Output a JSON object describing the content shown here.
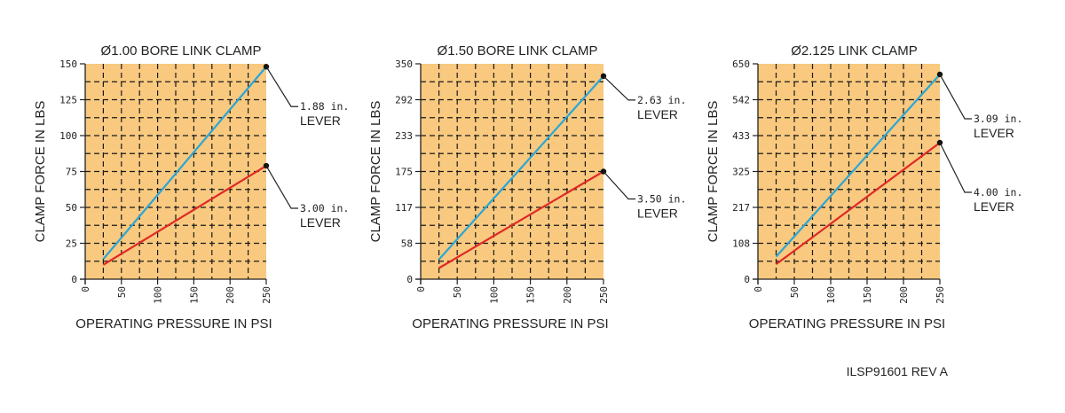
{
  "footer": "ILSP91601 REV A",
  "colors": {
    "plot_bg": "#f8c97f",
    "grid": "#1a1a1a",
    "blue": "#2aa6d6",
    "red": "#e02a26"
  },
  "chart_data": [
    {
      "type": "line",
      "title": "Ø1.00 BORE LINK CLAMP",
      "xlabel": "OPERATING PRESSURE IN PSI",
      "ylabel": "CLAMP FORCE IN LBS",
      "xlim": [
        0,
        250
      ],
      "ylim": [
        0,
        150
      ],
      "xticks": [
        "0",
        "50",
        "100",
        "150",
        "200",
        "250"
      ],
      "yticks": [
        "0",
        "25",
        "50",
        "75",
        "100",
        "125",
        "150"
      ],
      "grid": true,
      "series": [
        {
          "name": "1.88 in. LEVER",
          "label_line1": "1.88 in.",
          "label_line2": "LEVER",
          "color": "blue",
          "x": [
            25,
            250
          ],
          "y": [
            14,
            148
          ]
        },
        {
          "name": "3.00 in. LEVER",
          "label_line1": "3.00 in.",
          "label_line2": "LEVER",
          "color": "red",
          "x": [
            25,
            250
          ],
          "y": [
            10,
            79
          ]
        }
      ]
    },
    {
      "type": "line",
      "title": "Ø1.50 BORE LINK CLAMP",
      "xlabel": "OPERATING PRESSURE IN PSI",
      "ylabel": "CLAMP FORCE IN LBS",
      "xlim": [
        0,
        250
      ],
      "ylim": [
        0,
        350
      ],
      "xticks": [
        "0",
        "50",
        "100",
        "150",
        "200",
        "250"
      ],
      "yticks": [
        "0",
        "58",
        "117",
        "175",
        "233",
        "292",
        "350"
      ],
      "grid": true,
      "series": [
        {
          "name": "2.63 in. LEVER",
          "label_line1": "2.63 in.",
          "label_line2": "LEVER",
          "color": "blue",
          "x": [
            25,
            250
          ],
          "y": [
            32,
            330
          ]
        },
        {
          "name": "3.50 in. LEVER",
          "label_line1": "3.50 in.",
          "label_line2": "LEVER",
          "color": "red",
          "x": [
            25,
            250
          ],
          "y": [
            18,
            175
          ]
        }
      ]
    },
    {
      "type": "line",
      "title": "Ø2.125 LINK CLAMP",
      "xlabel": "OPERATING PRESSURE IN PSI",
      "ylabel": "CLAMP FORCE IN LBS",
      "xlim": [
        0,
        250
      ],
      "ylim": [
        0,
        650
      ],
      "xticks": [
        "0",
        "50",
        "100",
        "150",
        "200",
        "250"
      ],
      "yticks": [
        "0",
        "108",
        "217",
        "325",
        "433",
        "542",
        "650"
      ],
      "grid": true,
      "series": [
        {
          "name": "3.09 in. LEVER",
          "label_line1": "3.09 in.",
          "label_line2": "LEVER",
          "color": "blue",
          "x": [
            25,
            250
          ],
          "y": [
            68,
            618
          ]
        },
        {
          "name": "4.00 in. LEVER",
          "label_line1": "4.00 in.",
          "label_line2": "LEVER",
          "color": "red",
          "x": [
            25,
            250
          ],
          "y": [
            45,
            412
          ]
        }
      ]
    }
  ]
}
